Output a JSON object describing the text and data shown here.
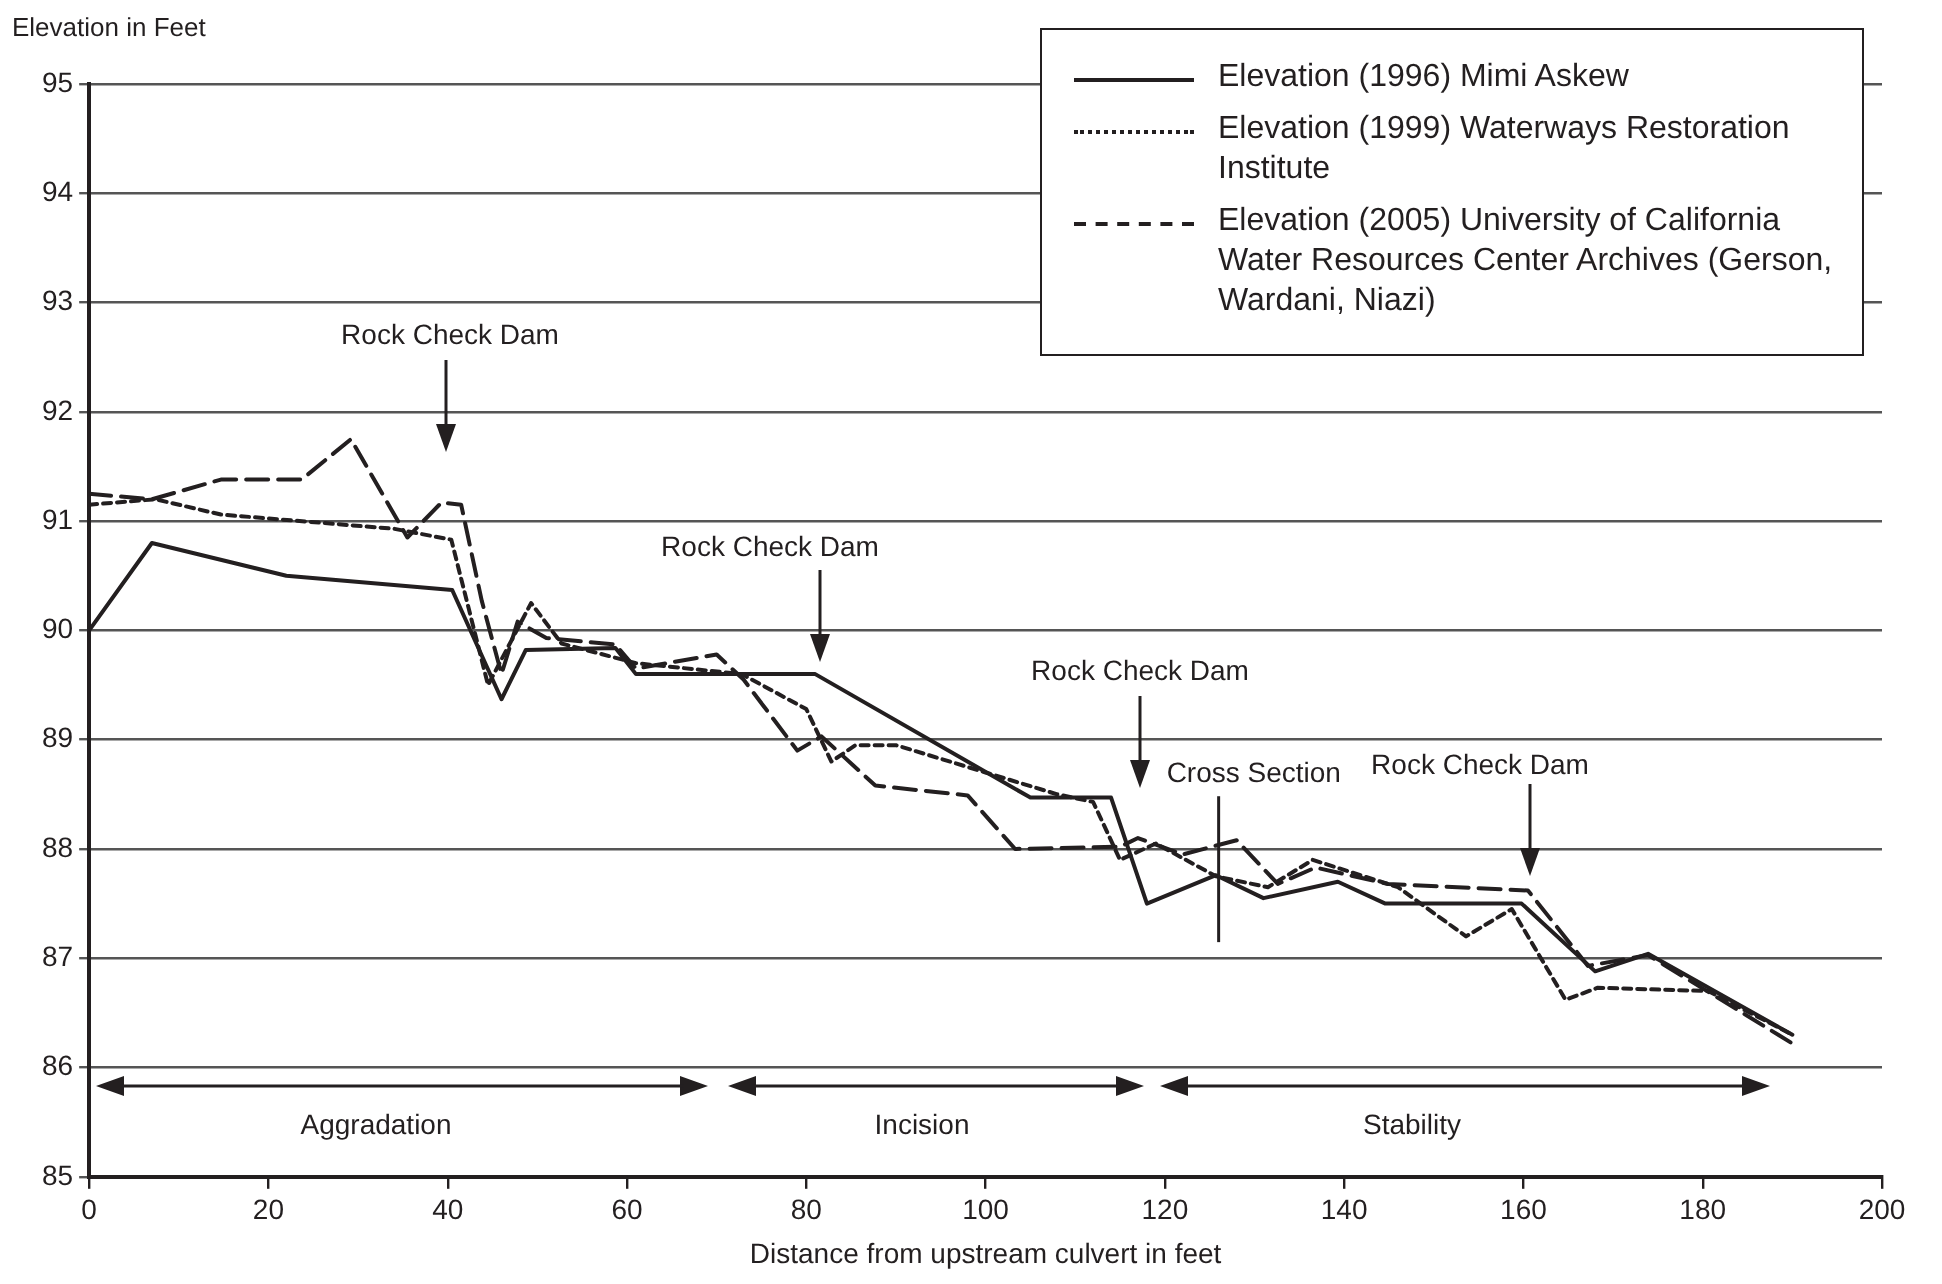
{
  "chart_data": {
    "type": "line",
    "xlabel": "Distance from upstream culvert in feet",
    "ylabel": "Elevation in Feet",
    "xlim": [
      0,
      200
    ],
    "xticks": [
      0,
      20,
      40,
      60,
      80,
      100,
      120,
      140,
      160,
      180,
      200
    ],
    "ylim": [
      85,
      95
    ],
    "yticks": [
      85,
      86,
      87,
      88,
      89,
      90,
      91,
      92,
      93,
      94,
      95
    ],
    "grid": "y",
    "legend": "top right",
    "marker": "none",
    "series": [
      {
        "name": "Elevation (1996) Mimi Askew",
        "color": "#231f20",
        "line_style": "solid",
        "x": [
          0,
          7,
          22,
          40.5,
          46,
          48.7,
          58.7,
          61,
          81,
          105,
          114,
          118,
          125.7,
          131,
          139.3,
          144.6,
          159.8,
          168,
          173.9,
          190
        ],
        "values": [
          90.0,
          90.8,
          90.5,
          90.37,
          89.37,
          89.82,
          89.84,
          89.6,
          89.6,
          88.47,
          88.47,
          87.5,
          87.76,
          87.55,
          87.7,
          87.5,
          87.5,
          86.88,
          87.04,
          86.3
        ]
      },
      {
        "name": "Elevation (1999) Waterways Restoration Institute",
        "color": "#231f20",
        "line_style": "dotted",
        "x": [
          0,
          7.4,
          14.7,
          34,
          40.4,
          44.5,
          49.3,
          52.7,
          61,
          72.8,
          80,
          82.8,
          85.5,
          90,
          100,
          108,
          112,
          115,
          119,
          125.7,
          131.5,
          136.5,
          146,
          153.6,
          158.7,
          164.7,
          168.3,
          180.6,
          190
        ],
        "values": [
          91.15,
          91.2,
          91.06,
          90.93,
          90.83,
          89.5,
          90.25,
          89.88,
          89.7,
          89.6,
          89.28,
          88.8,
          88.95,
          88.95,
          88.7,
          88.5,
          88.43,
          87.9,
          88.05,
          87.75,
          87.65,
          87.9,
          87.65,
          87.2,
          87.45,
          86.62,
          86.73,
          86.7,
          86.3
        ]
      },
      {
        "name": "Elevation (2005) University of California Water Resources Center Archives (Gerson, Wardani, Niazi)",
        "color": "#231f20",
        "line_style": "dashed",
        "x": [
          0,
          7,
          14.7,
          23.7,
          29.2,
          35.5,
          39.3,
          41.5,
          43.8,
          46,
          47.8,
          51,
          58.7,
          61,
          70,
          73,
          79,
          81.7,
          87.7,
          98,
          103.3,
          115,
          117,
          122,
          128,
          132.6,
          136.8,
          144.9,
          160.5,
          167.2,
          173.9,
          190
        ],
        "values": [
          91.25,
          91.2,
          91.38,
          91.38,
          91.75,
          90.85,
          91.17,
          91.15,
          90.27,
          89.6,
          90.08,
          89.93,
          89.87,
          89.65,
          89.78,
          89.55,
          88.9,
          89.03,
          88.58,
          88.49,
          88.0,
          88.02,
          88.1,
          87.95,
          88.08,
          87.68,
          87.83,
          87.68,
          87.62,
          86.93,
          87.03,
          86.22
        ]
      }
    ],
    "annotations": [
      "Rock Check Dam",
      "Rock Check Dam",
      "Rock Check Dam",
      "Rock Check Dam",
      "Aggradation",
      "Incision",
      "Stability"
    ],
    "ref_lines": [
      {
        "axis": "x",
        "value": 126,
        "label": "Cross Section"
      }
    ]
  }
}
